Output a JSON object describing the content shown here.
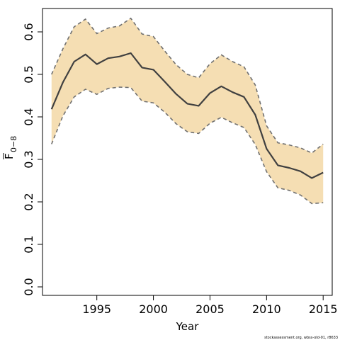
{
  "chart_data": {
    "type": "line",
    "xlabel": "Year",
    "ylabel": {
      "symbol": "F",
      "subscript": "0−8"
    },
    "xlim": [
      1990.2,
      2015.8
    ],
    "ylim": [
      -0.02,
      0.655
    ],
    "x_ticks": [
      1995,
      2000,
      2005,
      2010,
      2015
    ],
    "y_ticks": [
      0.0,
      0.1,
      0.2,
      0.3,
      0.4,
      0.5,
      0.6
    ],
    "y_tick_labels": [
      "0.0",
      "0.1",
      "0.2",
      "0.3",
      "0.4",
      "0.5",
      "0.6"
    ],
    "x": [
      1991,
      1992,
      1993,
      1994,
      1995,
      1996,
      1997,
      1998,
      1999,
      2000,
      2001,
      2002,
      2003,
      2004,
      2005,
      2006,
      2007,
      2008,
      2009,
      2010,
      2011,
      2012,
      2013,
      2014,
      2015
    ],
    "series": [
      {
        "role": "estimate",
        "color": "#404040",
        "values": [
          0.418,
          0.481,
          0.53,
          0.547,
          0.524,
          0.538,
          0.542,
          0.55,
          0.516,
          0.511,
          0.483,
          0.454,
          0.431,
          0.426,
          0.456,
          0.472,
          0.458,
          0.447,
          0.405,
          0.325,
          0.286,
          0.28,
          0.272,
          0.256,
          0.269
        ]
      },
      {
        "role": "upper",
        "color": "#707070",
        "values": [
          0.5,
          0.56,
          0.612,
          0.63,
          0.596,
          0.609,
          0.614,
          0.632,
          0.595,
          0.589,
          0.555,
          0.523,
          0.5,
          0.492,
          0.525,
          0.546,
          0.53,
          0.518,
          0.475,
          0.379,
          0.339,
          0.334,
          0.327,
          0.315,
          0.336
        ]
      },
      {
        "role": "lower",
        "color": "#707070",
        "values": [
          0.336,
          0.402,
          0.447,
          0.465,
          0.453,
          0.467,
          0.47,
          0.469,
          0.437,
          0.433,
          0.411,
          0.384,
          0.365,
          0.361,
          0.385,
          0.399,
          0.386,
          0.375,
          0.335,
          0.271,
          0.233,
          0.227,
          0.216,
          0.196,
          0.198
        ]
      }
    ],
    "band_color": "#f5deb3",
    "grid": false,
    "legend": "none"
  },
  "footnote": "stockassessment.org, wbss-old-01, r8633"
}
